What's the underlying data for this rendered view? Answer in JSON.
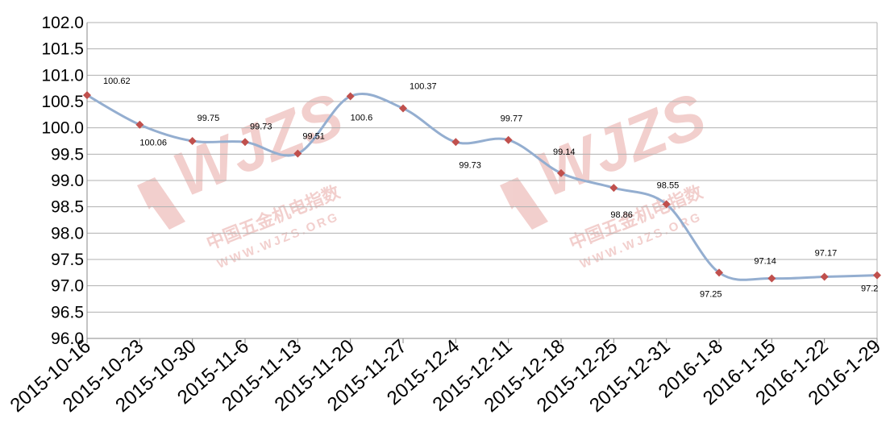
{
  "chart_data": {
    "type": "line",
    "title": "",
    "xlabel": "",
    "ylabel": "",
    "categories": [
      "2015-10-16",
      "2015-10-23",
      "2015-10-30",
      "2015-11-6",
      "2015-11-13",
      "2015-11-20",
      "2015-11-27",
      "2015-12-4",
      "2015-12-11",
      "2015-12-18",
      "2015-12-25",
      "2015-12-31",
      "2016-1-8",
      "2016-1-15",
      "2016-1-22",
      "2016-1-29"
    ],
    "series": [
      {
        "values": [
          100.62,
          100.06,
          99.75,
          99.73,
          99.51,
          100.6,
          100.37,
          99.73,
          99.77,
          99.14,
          98.86,
          98.55,
          97.25,
          97.14,
          97.17,
          97.2
        ],
        "data_labels": [
          "100.62",
          "100.06",
          "99.75",
          "99.73",
          "99.51",
          "100.6",
          "100.37",
          "99.73",
          "99.77",
          "99.14",
          "98.86",
          "98.55",
          "97.25",
          "97.14",
          "97.17",
          "97.2"
        ],
        "line_color": "#94aed0",
        "marker_color": "#c0504d",
        "marker": "diamond",
        "smooth": true
      }
    ],
    "ylim": [
      96.0,
      102.0
    ],
    "yticks": [
      "96.0",
      "96.5",
      "97.0",
      "97.5",
      "98.0",
      "98.5",
      "99.0",
      "99.5",
      "100.0",
      "100.5",
      "101.0",
      "101.5",
      "102.0"
    ],
    "grid": "horizontal",
    "legend": "none"
  },
  "watermark": {
    "logo_text": "WJZS",
    "cn_text": "中国五金机电指数",
    "url_text": "WWW.WJZS.ORG",
    "color": "#e8a9a6"
  },
  "colors": {
    "gridline": "#b0b0b0",
    "axis": "#888888"
  }
}
